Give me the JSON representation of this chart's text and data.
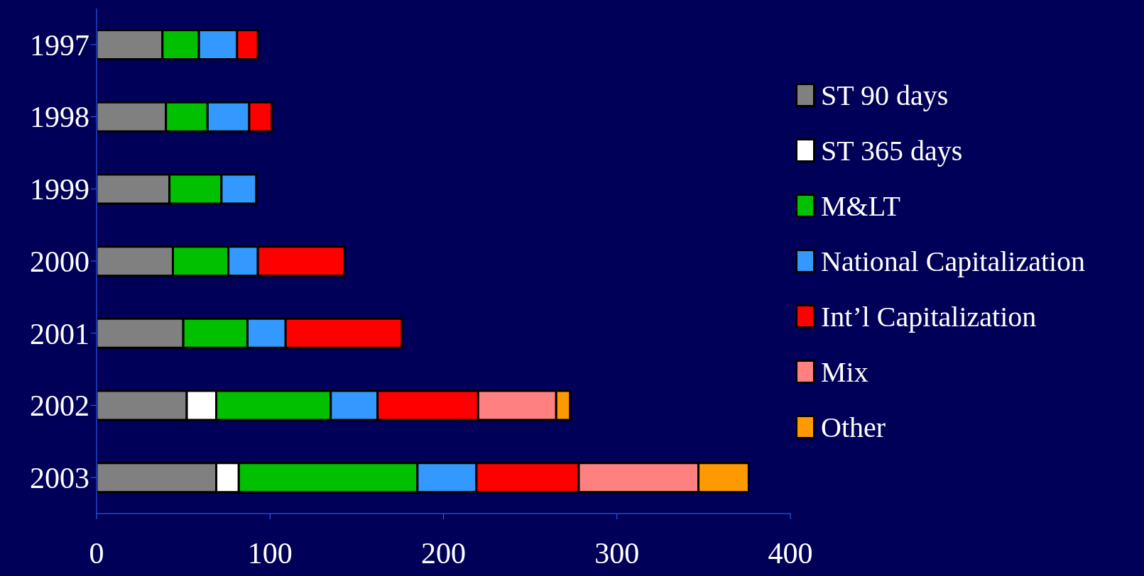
{
  "chart_data": {
    "type": "bar",
    "orientation": "horizontal",
    "stacked": true,
    "categories": [
      "1997",
      "1998",
      "1999",
      "2000",
      "2001",
      "2002",
      "2003"
    ],
    "series": [
      {
        "name": "ST 90 days",
        "color": "#808080",
        "values": [
          38,
          40,
          42,
          44,
          50,
          52,
          69
        ]
      },
      {
        "name": "ST 365 days",
        "color": "#ffffff",
        "values": [
          null,
          null,
          null,
          null,
          null,
          17,
          13
        ]
      },
      {
        "name": "M&LT",
        "color": "#00c000",
        "values": [
          21,
          24,
          30,
          32,
          37,
          66,
          103
        ]
      },
      {
        "name": "National Capitalization",
        "color": "#3399ff",
        "values": [
          22,
          24,
          20,
          17,
          22,
          27,
          34
        ]
      },
      {
        "name": "Int’l Capitalization",
        "color": "#ff0000",
        "values": [
          12,
          13,
          null,
          50,
          67,
          58,
          59
        ]
      },
      {
        "name": "Mix",
        "color": "#ff8080",
        "values": [
          null,
          null,
          null,
          null,
          null,
          45,
          69
        ]
      },
      {
        "name": "Other",
        "color": "#ff9900",
        "values": [
          null,
          null,
          null,
          null,
          null,
          8,
          29
        ]
      }
    ],
    "xlim": [
      0,
      400
    ],
    "xticks": [
      0,
      100,
      200,
      300,
      400
    ],
    "grid": false,
    "legend": "right"
  }
}
